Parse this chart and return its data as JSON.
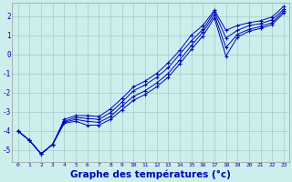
{
  "bg_color": "#cceeed",
  "grid_color": "#aac8c8",
  "line_color": "#0000bb",
  "xlabel": "Graphe des températures (°c)",
  "xlabel_fontsize": 7.5,
  "xlim": [
    -0.5,
    23.5
  ],
  "ylim": [
    -5.6,
    2.7
  ],
  "yticks": [
    -5,
    -4,
    -3,
    -2,
    -1,
    0,
    1,
    2
  ],
  "xticks": [
    0,
    1,
    2,
    3,
    4,
    5,
    6,
    7,
    8,
    9,
    10,
    11,
    12,
    13,
    14,
    15,
    16,
    17,
    18,
    19,
    20,
    21,
    22,
    23
  ],
  "series": [
    [
      -4.0,
      -4.5,
      -5.2,
      -4.7,
      -3.6,
      -3.5,
      -3.7,
      -3.7,
      -3.4,
      -2.9,
      -2.4,
      -2.1,
      -1.7,
      -1.2,
      -0.5,
      0.25,
      0.95,
      1.9,
      -0.1,
      0.9,
      1.2,
      1.35,
      1.55,
      2.15
    ],
    [
      -4.0,
      -4.5,
      -5.2,
      -4.7,
      -3.55,
      -3.4,
      -3.5,
      -3.55,
      -3.25,
      -2.7,
      -2.2,
      -1.9,
      -1.5,
      -1.0,
      -0.3,
      0.45,
      1.15,
      2.05,
      0.35,
      1.05,
      1.3,
      1.45,
      1.65,
      2.25
    ],
    [
      -4.0,
      -4.5,
      -5.2,
      -4.7,
      -3.5,
      -3.3,
      -3.35,
      -3.4,
      -3.05,
      -2.5,
      -1.9,
      -1.6,
      -1.2,
      -0.7,
      0.0,
      0.7,
      1.3,
      2.2,
      0.85,
      1.25,
      1.5,
      1.6,
      1.8,
      2.35
    ],
    [
      -4.0,
      -4.5,
      -5.2,
      -4.7,
      -3.4,
      -3.2,
      -3.2,
      -3.25,
      -2.85,
      -2.3,
      -1.7,
      -1.4,
      -1.0,
      -0.45,
      0.2,
      1.0,
      1.5,
      2.3,
      1.25,
      1.5,
      1.65,
      1.75,
      1.95,
      2.5
    ]
  ]
}
